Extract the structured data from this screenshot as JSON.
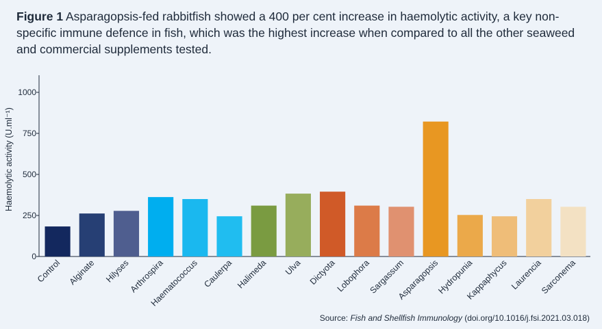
{
  "caption": {
    "figure_label": "Figure 1",
    "text": "Asparagopsis-fed rabbitfish showed a 400 per cent increase in haemolytic activity, a key non-specific immune defence in fish, which was the highest increase when compared to all the other seaweed and commercial supplements tested."
  },
  "source": {
    "prefix": "Source: ",
    "journal": "Fish and Shellfish Immunology",
    "doi": " (doi.org/10.1016/j.fsi.2021.03.018)"
  },
  "chart_data": {
    "type": "bar",
    "title": "",
    "xlabel": "",
    "ylabel": "Haemolytic activity (U.ml⁻¹)",
    "ylim": [
      0,
      1100
    ],
    "yticks": [
      0,
      250,
      500,
      750,
      1000
    ],
    "grid": false,
    "categories": [
      "Control",
      "Alginate",
      "Hilyses",
      "Arthrospira",
      "Haematococcus",
      "Caulerpa",
      "Halimeda",
      "Ulva",
      "Dictyota",
      "Lobophora",
      "Sargassum",
      "Asparagopsis",
      "Hydropunia",
      "Kappaphycus",
      "Laurencia",
      "Sarconema"
    ],
    "values": [
      183,
      262,
      278,
      362,
      350,
      245,
      310,
      383,
      395,
      310,
      303,
      822,
      253,
      245,
      350,
      303
    ],
    "colors": [
      "#13285e",
      "#263f74",
      "#4f5e8f",
      "#00aeef",
      "#1ab8ef",
      "#20bdf0",
      "#7a9b41",
      "#97ad5c",
      "#d05a28",
      "#dc7b48",
      "#e09170",
      "#e89722",
      "#eba94a",
      "#efbd78",
      "#f2d09d",
      "#f3e1c3"
    ]
  }
}
